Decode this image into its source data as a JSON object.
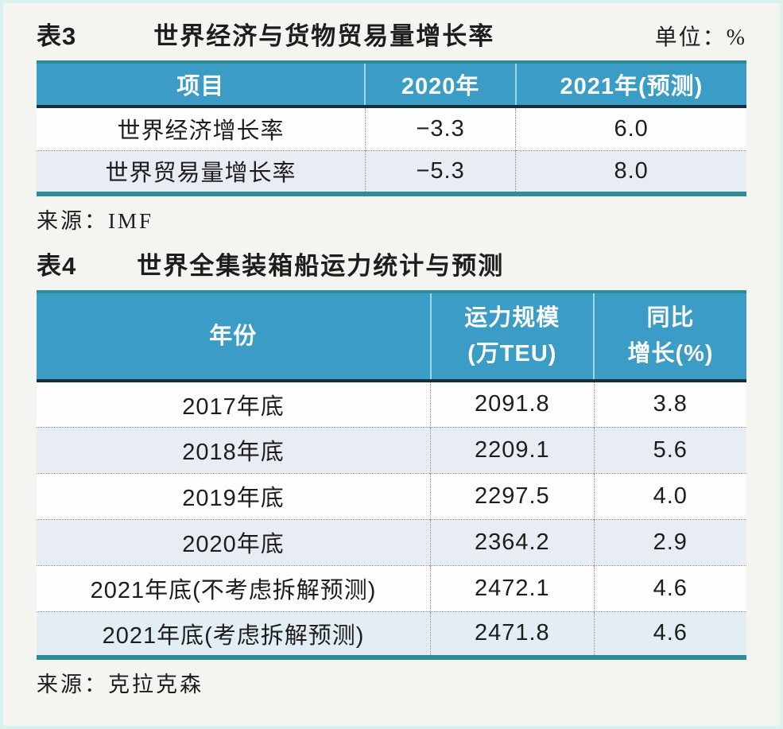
{
  "colors": {
    "page_bg": "#f4f4f1",
    "frame": "#d9f2ee",
    "text": "#1d1d1b",
    "header_bg": "#3b9cc5",
    "header_text": "#fdfdfd",
    "alt_row": "#e7edf3",
    "last_row": "#e2eef3",
    "teal": "#2e8c96",
    "dark_rule": "#14303c",
    "dotted": "#909090"
  },
  "table3": {
    "label": "表3",
    "title": "世界经济与货物贸易量增长率",
    "unit": "单位：%",
    "columns": [
      "项目",
      "2020年",
      "2021年(预测)"
    ],
    "rows": [
      {
        "item": "世界经济增长率",
        "y2020": "−3.3",
        "y2021": "6.0"
      },
      {
        "item": "世界贸易量增长率",
        "y2020": "−5.3",
        "y2021": "8.0"
      }
    ],
    "source": "来源：IMF"
  },
  "table4": {
    "label": "表4",
    "title": "世界全集装箱船运力统计与预测",
    "columns": [
      {
        "line1": "年份",
        "line2": ""
      },
      {
        "line1": "运力规模",
        "line2": "(万TEU)"
      },
      {
        "line1": "同比",
        "line2": "增长(%)"
      }
    ],
    "rows": [
      {
        "year": "2017年底",
        "capacity": "2091.8",
        "growth": "3.8"
      },
      {
        "year": "2018年底",
        "capacity": "2209.1",
        "growth": "5.6"
      },
      {
        "year": "2019年底",
        "capacity": "2297.5",
        "growth": "4.0"
      },
      {
        "year": "2020年底",
        "capacity": "2364.2",
        "growth": "2.9"
      },
      {
        "year": "2021年底(不考虑拆解预测)",
        "capacity": "2472.1",
        "growth": "4.6"
      },
      {
        "year": "2021年底(考虑拆解预测)",
        "capacity": "2471.8",
        "growth": "4.6"
      }
    ],
    "source": "来源：克拉克森"
  }
}
